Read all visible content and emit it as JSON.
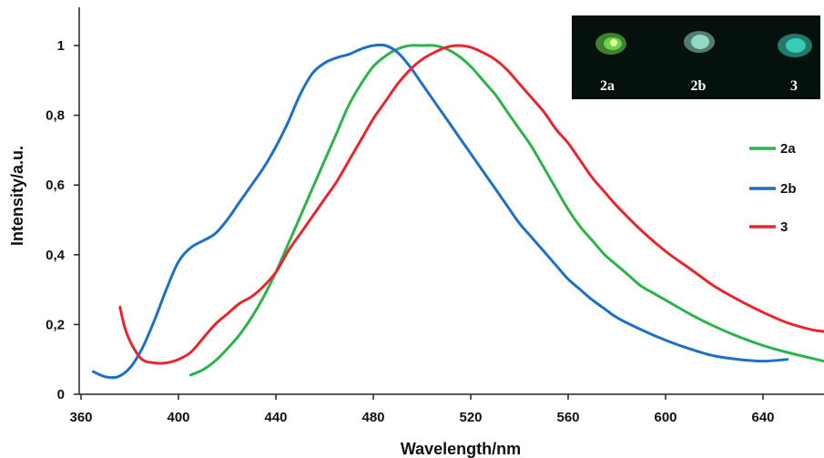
{
  "chart_data": {
    "type": "line",
    "title": "",
    "xlabel": "Wavelength/nm",
    "ylabel": "Intensity/a.u.",
    "xlim": [
      357,
      665
    ],
    "ylim": [
      0,
      1.1
    ],
    "x_ticks": [
      360,
      400,
      440,
      480,
      520,
      560,
      600,
      640
    ],
    "y_ticks": [
      0,
      0.2,
      0.4,
      0.6,
      0.8,
      1
    ],
    "x_tick_labels": [
      "360",
      "400",
      "440",
      "480",
      "520",
      "560",
      "600",
      "640"
    ],
    "y_tick_labels": [
      "0",
      "0,2",
      "0,4",
      "0,6",
      "0,8",
      "1"
    ],
    "grid": false,
    "legend_position": "right",
    "series": [
      {
        "name": "2a",
        "color": "#2db34a",
        "points": [
          [
            405,
            0.055
          ],
          [
            410,
            0.07
          ],
          [
            415,
            0.095
          ],
          [
            420,
            0.13
          ],
          [
            425,
            0.17
          ],
          [
            430,
            0.22
          ],
          [
            435,
            0.28
          ],
          [
            440,
            0.35
          ],
          [
            445,
            0.43
          ],
          [
            450,
            0.51
          ],
          [
            455,
            0.59
          ],
          [
            460,
            0.67
          ],
          [
            465,
            0.75
          ],
          [
            470,
            0.83
          ],
          [
            475,
            0.89
          ],
          [
            480,
            0.94
          ],
          [
            485,
            0.97
          ],
          [
            490,
            0.99
          ],
          [
            495,
            1.0
          ],
          [
            500,
            1.0
          ],
          [
            505,
            1.0
          ],
          [
            510,
            0.99
          ],
          [
            515,
            0.97
          ],
          [
            520,
            0.94
          ],
          [
            525,
            0.9
          ],
          [
            530,
            0.86
          ],
          [
            535,
            0.81
          ],
          [
            540,
            0.76
          ],
          [
            545,
            0.71
          ],
          [
            550,
            0.65
          ],
          [
            555,
            0.59
          ],
          [
            560,
            0.53
          ],
          [
            565,
            0.48
          ],
          [
            570,
            0.44
          ],
          [
            575,
            0.4
          ],
          [
            580,
            0.37
          ],
          [
            585,
            0.34
          ],
          [
            590,
            0.31
          ],
          [
            595,
            0.29
          ],
          [
            600,
            0.27
          ],
          [
            610,
            0.23
          ],
          [
            620,
            0.195
          ],
          [
            630,
            0.165
          ],
          [
            640,
            0.14
          ],
          [
            650,
            0.12
          ],
          [
            665,
            0.095
          ]
        ]
      },
      {
        "name": "2b",
        "color": "#1f6fc4",
        "points": [
          [
            365,
            0.065
          ],
          [
            370,
            0.05
          ],
          [
            375,
            0.05
          ],
          [
            380,
            0.075
          ],
          [
            385,
            0.13
          ],
          [
            390,
            0.21
          ],
          [
            395,
            0.3
          ],
          [
            400,
            0.38
          ],
          [
            405,
            0.42
          ],
          [
            410,
            0.44
          ],
          [
            415,
            0.46
          ],
          [
            420,
            0.5
          ],
          [
            425,
            0.55
          ],
          [
            430,
            0.6
          ],
          [
            435,
            0.65
          ],
          [
            440,
            0.71
          ],
          [
            445,
            0.78
          ],
          [
            450,
            0.86
          ],
          [
            455,
            0.92
          ],
          [
            460,
            0.95
          ],
          [
            465,
            0.965
          ],
          [
            470,
            0.975
          ],
          [
            475,
            0.99
          ],
          [
            480,
            1.0
          ],
          [
            485,
            1.0
          ],
          [
            490,
            0.98
          ],
          [
            495,
            0.94
          ],
          [
            500,
            0.89
          ],
          [
            505,
            0.84
          ],
          [
            510,
            0.79
          ],
          [
            515,
            0.74
          ],
          [
            520,
            0.69
          ],
          [
            525,
            0.64
          ],
          [
            530,
            0.59
          ],
          [
            535,
            0.54
          ],
          [
            540,
            0.49
          ],
          [
            545,
            0.45
          ],
          [
            550,
            0.41
          ],
          [
            555,
            0.37
          ],
          [
            560,
            0.33
          ],
          [
            565,
            0.3
          ],
          [
            570,
            0.27
          ],
          [
            575,
            0.245
          ],
          [
            580,
            0.22
          ],
          [
            590,
            0.185
          ],
          [
            600,
            0.155
          ],
          [
            610,
            0.13
          ],
          [
            620,
            0.11
          ],
          [
            630,
            0.1
          ],
          [
            640,
            0.095
          ],
          [
            650,
            0.1
          ]
        ]
      },
      {
        "name": "3",
        "color": "#e8262e",
        "points": [
          [
            376,
            0.25
          ],
          [
            378,
            0.19
          ],
          [
            381,
            0.14
          ],
          [
            385,
            0.1
          ],
          [
            390,
            0.09
          ],
          [
            395,
            0.09
          ],
          [
            400,
            0.1
          ],
          [
            405,
            0.12
          ],
          [
            410,
            0.16
          ],
          [
            415,
            0.2
          ],
          [
            420,
            0.23
          ],
          [
            425,
            0.26
          ],
          [
            430,
            0.28
          ],
          [
            435,
            0.31
          ],
          [
            440,
            0.35
          ],
          [
            445,
            0.41
          ],
          [
            450,
            0.46
          ],
          [
            455,
            0.51
          ],
          [
            460,
            0.56
          ],
          [
            465,
            0.61
          ],
          [
            470,
            0.67
          ],
          [
            475,
            0.73
          ],
          [
            480,
            0.79
          ],
          [
            485,
            0.84
          ],
          [
            490,
            0.89
          ],
          [
            495,
            0.93
          ],
          [
            500,
            0.96
          ],
          [
            505,
            0.98
          ],
          [
            510,
            0.995
          ],
          [
            515,
            1.0
          ],
          [
            520,
            0.995
          ],
          [
            525,
            0.98
          ],
          [
            530,
            0.96
          ],
          [
            535,
            0.93
          ],
          [
            540,
            0.89
          ],
          [
            545,
            0.85
          ],
          [
            550,
            0.81
          ],
          [
            555,
            0.76
          ],
          [
            560,
            0.72
          ],
          [
            565,
            0.67
          ],
          [
            570,
            0.62
          ],
          [
            575,
            0.58
          ],
          [
            580,
            0.54
          ],
          [
            590,
            0.47
          ],
          [
            600,
            0.41
          ],
          [
            610,
            0.36
          ],
          [
            620,
            0.31
          ],
          [
            630,
            0.27
          ],
          [
            640,
            0.235
          ],
          [
            650,
            0.205
          ],
          [
            660,
            0.185
          ],
          [
            665,
            0.18
          ]
        ]
      }
    ],
    "inset": {
      "background": "#05110c",
      "labels": [
        "2a",
        "2b",
        "3"
      ],
      "colors": [
        "#6fdc4a",
        "#9fe8d4",
        "#3fe0c8"
      ]
    }
  }
}
